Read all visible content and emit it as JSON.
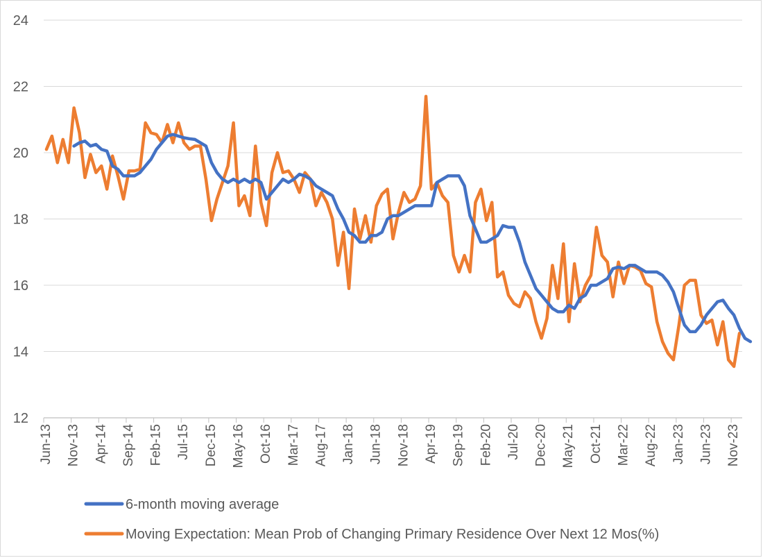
{
  "chart_data": {
    "type": "line",
    "title": "",
    "xlabel": "",
    "ylabel": "",
    "ylim": [
      12,
      24
    ],
    "yticks": [
      "12",
      "14",
      "16",
      "18",
      "20",
      "22",
      "24"
    ],
    "grid": true,
    "legend": "bottom",
    "x_start": "Jun-13",
    "x_tick_labels": [
      "Jun-13",
      "Nov-13",
      "Apr-14",
      "Sep-14",
      "Feb-15",
      "Jul-15",
      "Dec-15",
      "May-16",
      "Oct-16",
      "Mar-17",
      "Aug-17",
      "Jan-18",
      "Jun-18",
      "Nov-18",
      "Apr-19",
      "Sep-19",
      "Feb-20",
      "Jul-20",
      "Dec-20",
      "May-21",
      "Oct-21",
      "Mar-22",
      "Aug-22",
      "Jan-23",
      "Jun-23",
      "Nov-23"
    ],
    "colors": {
      "moving_average": "#4472c4",
      "expectation": "#ed7d31",
      "grid": "#d9d9d9"
    },
    "series": [
      {
        "name": "6-month moving average",
        "start_index": 5,
        "values": [
          20.2,
          20.3,
          20.35,
          20.2,
          20.25,
          20.1,
          20.05,
          19.6,
          19.5,
          19.3,
          19.3,
          19.3,
          19.4,
          19.6,
          19.8,
          20.1,
          20.3,
          20.5,
          20.55,
          20.5,
          20.45,
          20.42,
          20.4,
          20.3,
          20.2,
          19.7,
          19.4,
          19.2,
          19.1,
          19.2,
          19.1,
          19.2,
          19.1,
          19.2,
          19.1,
          18.6,
          18.8,
          19.0,
          19.2,
          19.1,
          19.2,
          19.35,
          19.3,
          19.2,
          19.0,
          18.9,
          18.8,
          18.7,
          18.3,
          18.0,
          17.6,
          17.5,
          17.3,
          17.3,
          17.5,
          17.5,
          17.6,
          18.0,
          18.1,
          18.1,
          18.2,
          18.3,
          18.4,
          18.4,
          18.4,
          18.4,
          19.1,
          19.2,
          19.3,
          19.3,
          19.3,
          19.0,
          18.1,
          17.7,
          17.3,
          17.3,
          17.4,
          17.5,
          17.8,
          17.75,
          17.75,
          17.3,
          16.7,
          16.3,
          15.9,
          15.7,
          15.5,
          15.3,
          15.2,
          15.2,
          15.4,
          15.3,
          15.6,
          15.7,
          16.0,
          16.0,
          16.1,
          16.2,
          16.5,
          16.55,
          16.5,
          16.6,
          16.6,
          16.5,
          16.4,
          16.4,
          16.4,
          16.3,
          16.1,
          15.8,
          15.3,
          14.8,
          14.6,
          14.6,
          14.8,
          15.1,
          15.3,
          15.5,
          15.55,
          15.3,
          15.1,
          14.7,
          14.4,
          14.3
        ]
      },
      {
        "name": "Moving Expectation: Mean Prob of Changing Primary Residence Over Next 12 Mos(%)",
        "start_index": 0,
        "values": [
          20.1,
          20.5,
          19.7,
          20.4,
          19.7,
          21.35,
          20.6,
          19.25,
          19.95,
          19.4,
          19.6,
          18.9,
          19.9,
          19.3,
          18.6,
          19.45,
          19.45,
          19.5,
          20.9,
          20.6,
          20.55,
          20.3,
          20.85,
          20.3,
          20.9,
          20.3,
          20.1,
          20.2,
          20.2,
          19.2,
          17.95,
          18.6,
          19.1,
          19.6,
          20.9,
          18.4,
          18.7,
          18.1,
          20.2,
          18.5,
          17.8,
          19.4,
          20.0,
          19.4,
          19.45,
          19.2,
          18.8,
          19.4,
          19.2,
          18.4,
          18.8,
          18.5,
          18.0,
          16.6,
          17.6,
          15.9,
          18.3,
          17.4,
          18.1,
          17.3,
          18.4,
          18.75,
          18.9,
          17.4,
          18.2,
          18.8,
          18.5,
          18.6,
          19.0,
          21.7,
          18.9,
          19.1,
          18.7,
          18.5,
          16.9,
          16.4,
          16.9,
          16.4,
          18.5,
          18.9,
          17.95,
          18.5,
          16.25,
          16.4,
          15.7,
          15.45,
          15.35,
          15.8,
          15.6,
          14.9,
          14.4,
          15.0,
          16.6,
          15.6,
          17.25,
          14.9,
          16.65,
          15.5,
          16.0,
          16.3,
          17.75,
          16.9,
          16.7,
          15.65,
          16.7,
          16.05,
          16.6,
          16.55,
          16.45,
          16.05,
          15.95,
          14.9,
          14.3,
          13.95,
          13.75,
          14.8,
          16.0,
          16.15,
          16.15,
          15.1,
          14.85,
          14.95,
          14.2,
          14.9,
          13.75,
          13.55,
          14.55
        ]
      }
    ]
  }
}
